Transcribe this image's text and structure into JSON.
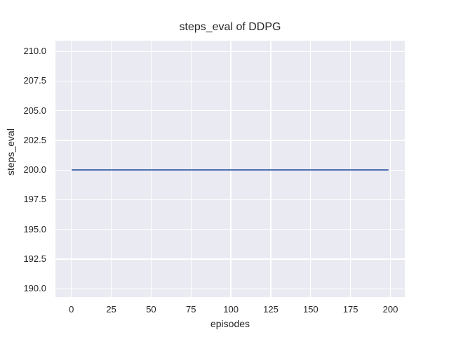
{
  "chart_data": {
    "type": "line",
    "title": "steps_eval of DDPG",
    "xlabel": "episodes",
    "ylabel": "steps_eval",
    "x_ticks": [
      0,
      25,
      50,
      75,
      100,
      125,
      150,
      175,
      200
    ],
    "x_tick_labels": [
      "0",
      "25",
      "50",
      "75",
      "100",
      "125",
      "150",
      "175",
      "200"
    ],
    "y_ticks": [
      190.0,
      192.5,
      195.0,
      197.5,
      200.0,
      202.5,
      205.0,
      207.5,
      210.0
    ],
    "y_tick_labels": [
      "190.0",
      "192.5",
      "195.0",
      "197.5",
      "200.0",
      "202.5",
      "205.0",
      "207.5",
      "210.0"
    ],
    "xlim": [
      -10,
      209
    ],
    "ylim": [
      189.3,
      210.9
    ],
    "grid": true,
    "legend": null,
    "series": [
      {
        "name": "steps_eval",
        "constant_value": 200.0,
        "x_start": 0,
        "x_end": 199,
        "points": [
          [
            0,
            200.0
          ],
          [
            199,
            200.0
          ]
        ]
      }
    ],
    "colors": {
      "figure_bg": "#ffffff",
      "plot_bg": "#eaeaf2",
      "grid": "#ffffff",
      "text": "#262626",
      "line": "#4c72b0"
    }
  }
}
